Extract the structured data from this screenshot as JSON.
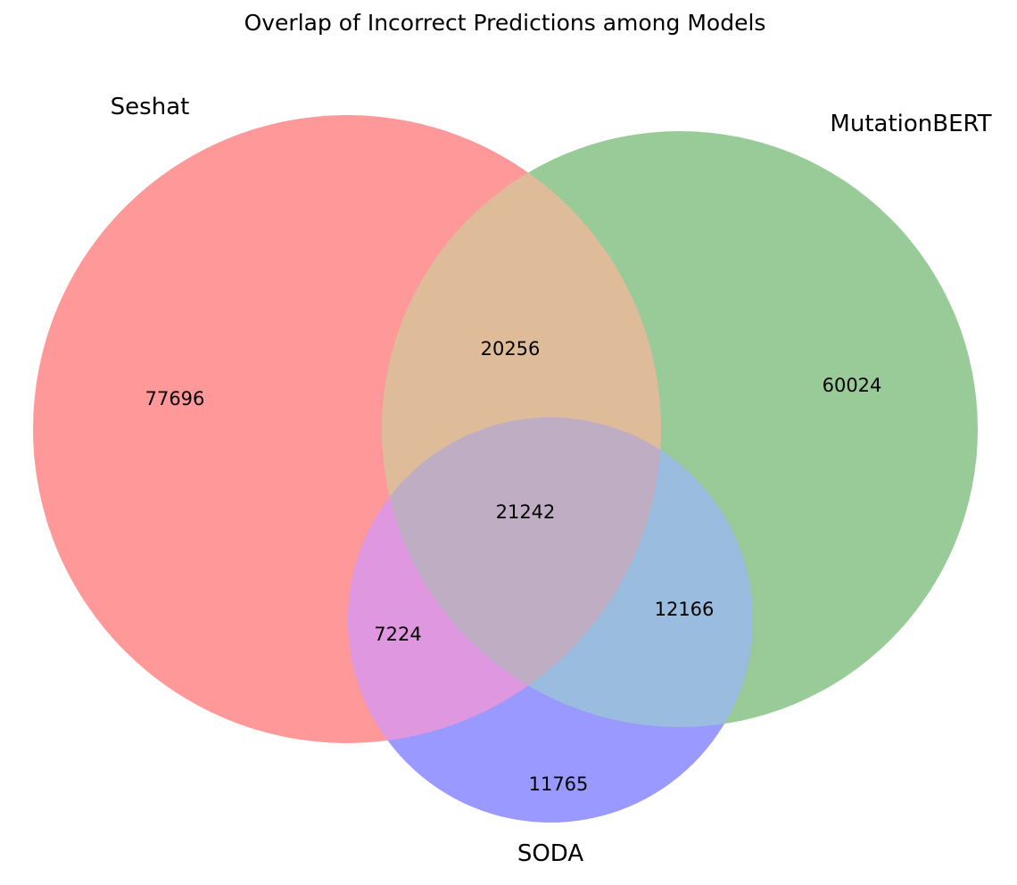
{
  "chart_data": {
    "type": "venn3",
    "title": "Overlap of Incorrect Predictions among Models",
    "sets": [
      {
        "key": "A",
        "name": "Seshat",
        "color": "#ff9898"
      },
      {
        "key": "B",
        "name": "MutationBERT",
        "color": "#99cb99"
      },
      {
        "key": "C",
        "name": "SODA",
        "color": "#9999ff"
      }
    ],
    "regions": {
      "A_only": 77696,
      "B_only": 60024,
      "C_only": 11765,
      "A_and_B_only": 20256,
      "A_and_C_only": 7224,
      "B_and_C_only": 12166,
      "A_and_B_and_C": 21242
    },
    "region_colors": {
      "A_and_B": "#dfbc99",
      "A_and_C": "#df98df",
      "B_and_C": "#99bcdf",
      "A_and_B_and_C": "#bfadc4"
    }
  }
}
